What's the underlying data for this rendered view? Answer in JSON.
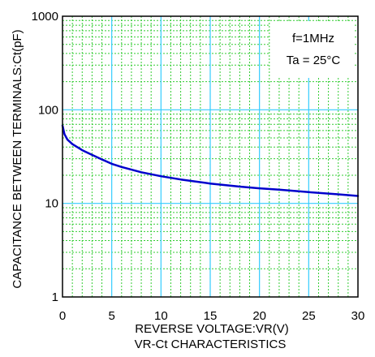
{
  "chart_data": {
    "type": "line",
    "title": "VR-Ct CHARACTERISTICS",
    "xlabel": "REVERSE VOLTAGE:VR(V)",
    "ylabel": "CAPACITANCE BETWEEN TERMINALS:Ct(pF)",
    "x_scale": "linear",
    "y_scale": "log",
    "xlim": [
      0,
      30
    ],
    "ylim": [
      1,
      1000
    ],
    "x_ticks": [
      "0",
      "5",
      "10",
      "15",
      "20",
      "25",
      "30"
    ],
    "y_ticks": [
      "1",
      "10",
      "100",
      "1000"
    ],
    "grid": true,
    "annotations": [
      "f=1MHz",
      "Ta = 25°C"
    ],
    "series": [
      {
        "x": [
          0,
          0.2,
          0.5,
          1,
          2,
          3,
          4,
          5,
          6,
          8,
          10,
          12,
          15,
          18,
          20,
          22,
          25,
          28,
          30
        ],
        "y": [
          68,
          55,
          48,
          43,
          37,
          33,
          29.5,
          26.5,
          24.5,
          21.5,
          19.5,
          18,
          16.3,
          15.1,
          14.5,
          14,
          13.2,
          12.5,
          12
        ]
      }
    ],
    "colors": {
      "major_grid": "#33ccff",
      "minor_grid": "#33cc33",
      "line": "#0000cc"
    }
  }
}
